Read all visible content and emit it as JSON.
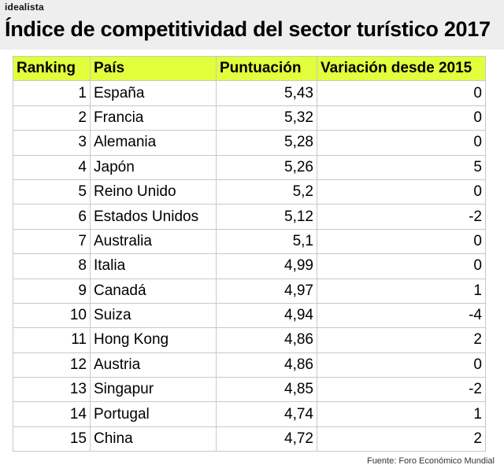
{
  "brand": "idealista",
  "title": "Índice de competitividad del sector turístico 2017",
  "source": "Fuente: Foro Económico Mundial",
  "chart_data": {
    "type": "table",
    "title": "Índice de competitividad del sector turístico 2017",
    "columns": [
      "Ranking",
      "País",
      "Puntuación",
      "Variación desde 2015"
    ],
    "rows": [
      [
        "1",
        "España",
        "5,43",
        "0"
      ],
      [
        "2",
        "Francia",
        "5,32",
        "0"
      ],
      [
        "3",
        "Alemania",
        "5,28",
        "0"
      ],
      [
        "4",
        "Japón",
        "5,26",
        "5"
      ],
      [
        "5",
        "Reino Unido",
        "5,2",
        "0"
      ],
      [
        "6",
        "Estados Unidos",
        "5,12",
        "-2"
      ],
      [
        "7",
        "Australia",
        "5,1",
        "0"
      ],
      [
        "8",
        "Italia",
        "4,99",
        "0"
      ],
      [
        "9",
        "Canadá",
        "4,97",
        "1"
      ],
      [
        "10",
        "Suiza",
        "4,94",
        "-4"
      ],
      [
        "11",
        "Hong Kong",
        "4,86",
        "2"
      ],
      [
        "12",
        "Austria",
        "4,86",
        "0"
      ],
      [
        "13",
        "Singapur",
        "4,85",
        "-2"
      ],
      [
        "14",
        "Portugal",
        "4,74",
        "1"
      ],
      [
        "15",
        "China",
        "4,72",
        "2"
      ]
    ]
  },
  "colors": {
    "header_row": "#e1ff3c",
    "title_band": "#eeeeee",
    "grid": "#c8c8c8"
  }
}
